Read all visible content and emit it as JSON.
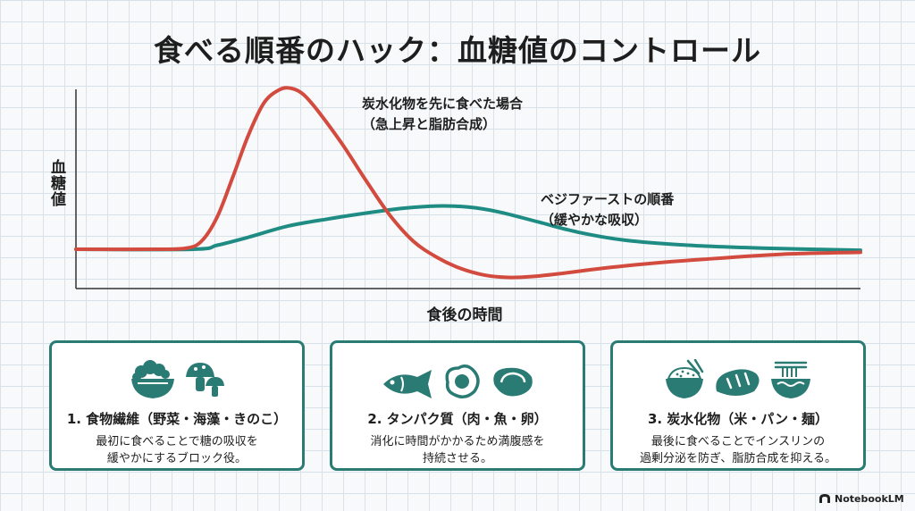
{
  "title": "食べる順番のハック：血糖値のコントロール",
  "chart_data": {
    "type": "line",
    "ylabel": "血糖値",
    "xlabel": "食後の時間",
    "x_range": [
      0,
      100
    ],
    "y_range": [
      0,
      100
    ],
    "series": [
      {
        "name": "炭水化物を先に食べた場合（急上昇と脂肪合成）",
        "color": "#d34a3f",
        "points": [
          [
            0,
            16
          ],
          [
            10,
            16
          ],
          [
            14,
            16.5
          ],
          [
            16,
            20
          ],
          [
            18,
            32
          ],
          [
            20,
            52
          ],
          [
            22,
            73
          ],
          [
            24,
            89
          ],
          [
            26,
            95.5
          ],
          [
            27.5,
            96
          ],
          [
            29,
            93
          ],
          [
            31,
            84
          ],
          [
            34,
            68
          ],
          [
            37,
            50
          ],
          [
            40,
            33
          ],
          [
            43,
            20
          ],
          [
            46,
            12
          ],
          [
            49,
            6.5
          ],
          [
            52,
            3.2
          ],
          [
            55,
            2
          ],
          [
            58,
            2.4
          ],
          [
            62,
            4
          ],
          [
            66,
            6
          ],
          [
            72,
            8.5
          ],
          [
            80,
            11
          ],
          [
            90,
            13.5
          ],
          [
            100,
            14.5
          ]
        ]
      },
      {
        "name": "ベジファーストの順番（緩やかな吸収）",
        "color": "#1f8c84",
        "points": [
          [
            0,
            16
          ],
          [
            15,
            16
          ],
          [
            18,
            18
          ],
          [
            22,
            22
          ],
          [
            27,
            27.5
          ],
          [
            32,
            31
          ],
          [
            37,
            34
          ],
          [
            42,
            36.5
          ],
          [
            46,
            37.5
          ],
          [
            50,
            37
          ],
          [
            54,
            34.5
          ],
          [
            59,
            29.5
          ],
          [
            64,
            24.5
          ],
          [
            70,
            20.5
          ],
          [
            78,
            18
          ],
          [
            88,
            16.5
          ],
          [
            100,
            15.5
          ]
        ]
      }
    ],
    "annotations": [
      {
        "lines": [
          "炭水化物を先に食べた場合",
          "（急上昇と脂肪合成）"
        ]
      },
      {
        "lines": [
          "ベジファーストの順番",
          "（緩やかな吸収）"
        ]
      }
    ],
    "grid": false,
    "legend": "annotations beside curves"
  },
  "cards": [
    {
      "title": "1. 食物繊維（野菜・海藻・きのこ）",
      "desc_lines": [
        "最初に食べることで糖の吸収を",
        "緩やかにするブロック役。"
      ],
      "icons": [
        "salad-bowl-icon",
        "mushroom-icon"
      ]
    },
    {
      "title": "2. タンパク質（肉・魚・卵）",
      "desc_lines": [
        "消化に時間がかかるため満腹感を",
        "持続させる。"
      ],
      "icons": [
        "fish-icon",
        "egg-icon",
        "steak-icon"
      ]
    },
    {
      "title": "3. 炭水化物（米・パン・麺）",
      "desc_lines": [
        "最後に食べることでインスリンの",
        "過剰分泌を防ぎ、脂肪合成を抑える。"
      ],
      "icons": [
        "rice-bowl-icon",
        "bread-icon",
        "noodle-bowl-icon"
      ]
    }
  ],
  "colors": {
    "accent": "#2a7b74",
    "red_curve": "#d34a3f",
    "teal_curve": "#1f8c84"
  },
  "brand": "NotebookLM"
}
